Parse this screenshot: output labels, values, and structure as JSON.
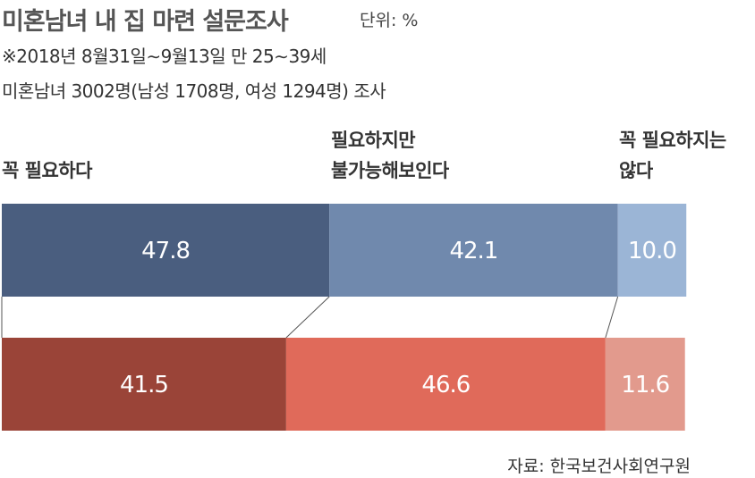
{
  "title": "미혼남녀 내 집 마련 설문조사",
  "unit": "단위: %",
  "subtitle_lines": [
    "※2018년 8월31일∼9월13일 만 25∼39세",
    "미혼남녀 3002명(남성 1708명, 여성 1294명) 조사"
  ],
  "source": "자료: 한국보건사회연구원",
  "chart_data": {
    "type": "bar",
    "stacked": true,
    "orientation": "horizontal",
    "categories": [
      "꼭 필요하다",
      "필요하지만 불가능해보인다",
      "꼭 필요하지는 않다"
    ],
    "category_lines": [
      [
        "꼭 필요하다"
      ],
      [
        "필요하지만",
        "불가능해보인다"
      ],
      [
        "꼭 필요하지는",
        "않다"
      ]
    ],
    "series": [
      {
        "values": [
          47.8,
          42.1,
          10.0
        ],
        "labels": [
          "47.8",
          "42.1",
          "10.0"
        ],
        "colors": [
          "#4a5e7f",
          "#7089ad",
          "#9bb5d6"
        ]
      },
      {
        "values": [
          41.5,
          46.6,
          11.6
        ],
        "labels": [
          "41.5",
          "46.6",
          "11.6"
        ],
        "colors": [
          "#9a4438",
          "#e06a5a",
          "#e29a8d"
        ]
      }
    ]
  }
}
